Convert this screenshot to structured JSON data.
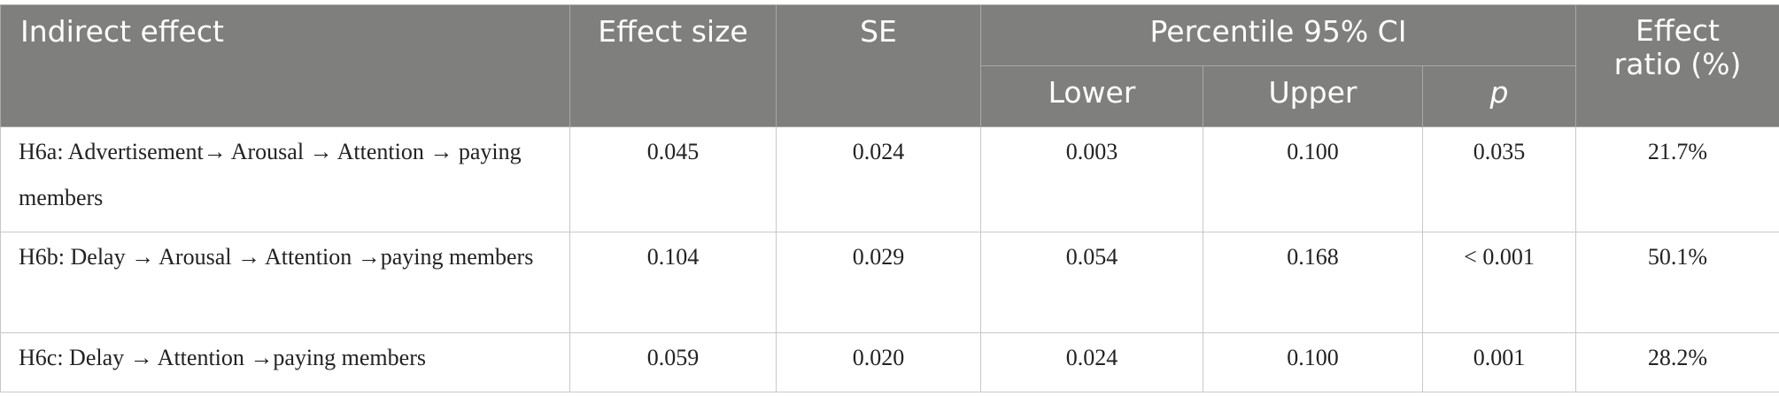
{
  "header": {
    "indirect_effect": "Indirect effect",
    "effect_size": "Effect size",
    "se": "SE",
    "ci": "Percentile 95% CI",
    "lower": "Lower",
    "upper": "Upper",
    "p": "p",
    "effect_ratio": "Effect ratio (%)"
  },
  "table": {
    "rows": [
      [
        "H6a: Advertisement→ Arousal → Attention → paying members",
        "0.045",
        "0.024",
        "0.003",
        "0.100",
        "0.035",
        "21.7%"
      ],
      [
        "H6b: Delay → Arousal → Attention →paying members",
        "0.104",
        "0.029",
        "0.054",
        "0.168",
        "< 0.001",
        "50.1%"
      ],
      [
        "H6c: Delay → Attention →paying members",
        "0.059",
        "0.020",
        "0.024",
        "0.100",
        "0.001",
        "28.2%"
      ]
    ]
  }
}
